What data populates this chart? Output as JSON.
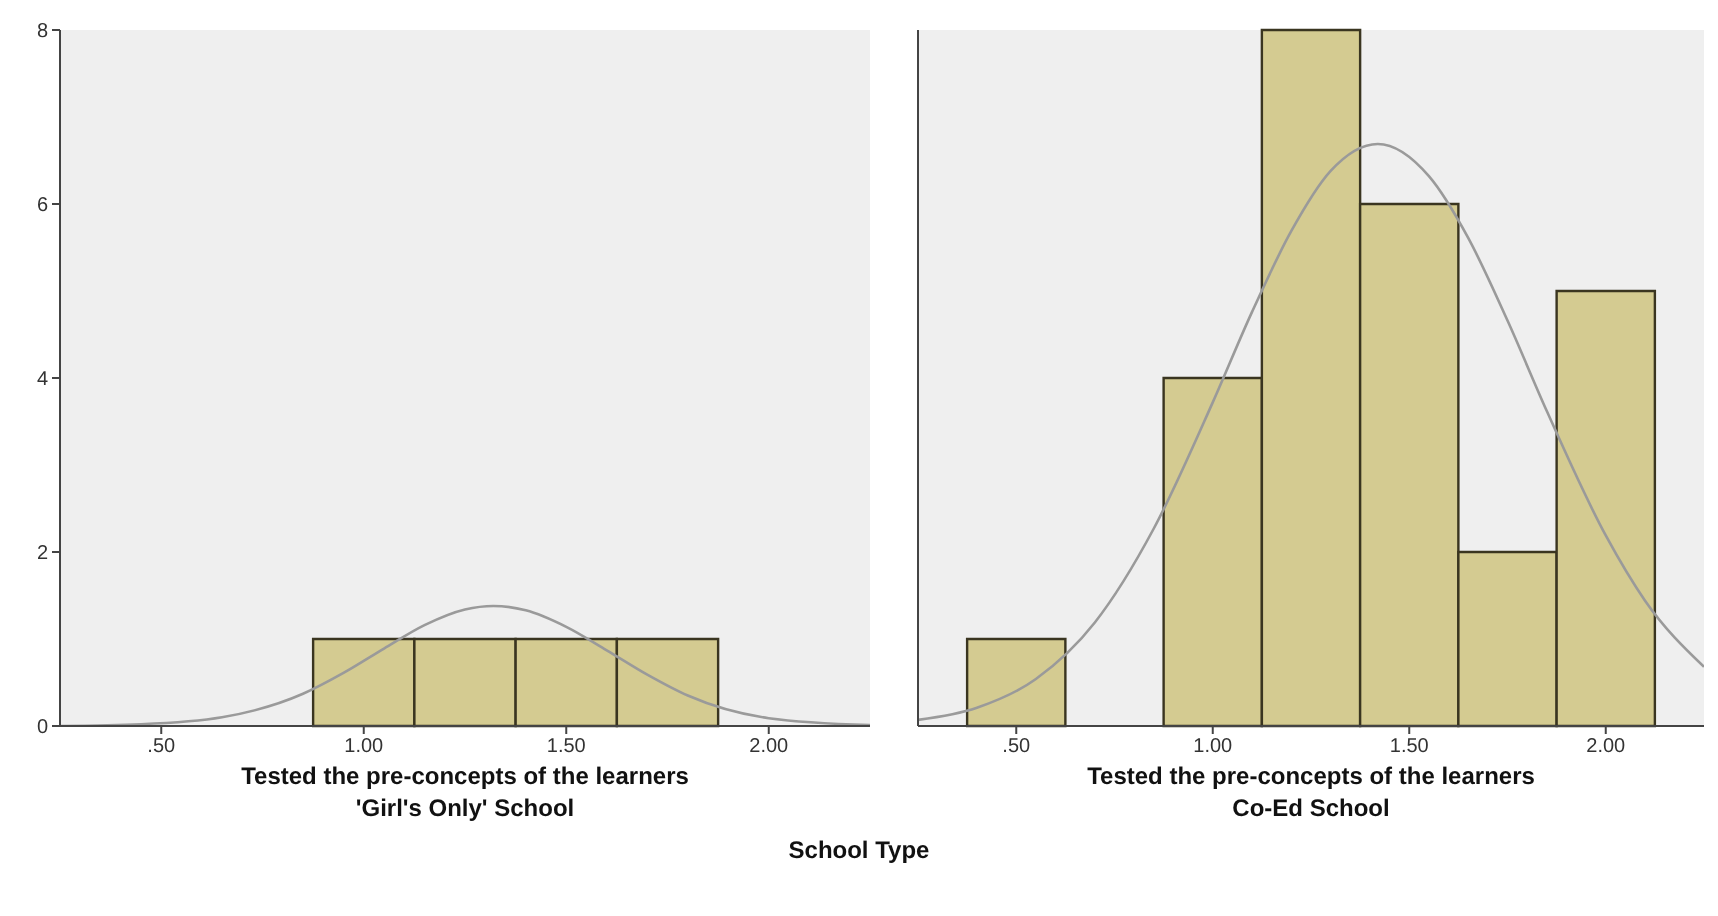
{
  "chart_data": [
    {
      "type": "histogram",
      "xlabel": "Tested the pre-concepts of the learners",
      "annotations": [
        "'Girl's Only' School",
        "School Type"
      ],
      "bins": [
        0.375,
        0.625,
        0.875,
        1.125,
        1.375,
        1.625,
        1.875,
        2.125
      ],
      "values": [
        0,
        0,
        1,
        1,
        1,
        1,
        0
      ],
      "color": "#d4cb91",
      "xlim": [
        0.25,
        2.25
      ],
      "xticks": [
        {
          "value": 0.5,
          "label": ".50"
        },
        {
          "value": 1,
          "label": "1.00"
        },
        {
          "value": 1.5,
          "label": "1.50"
        },
        {
          "value": 2,
          "label": "2.00"
        }
      ],
      "ylim": [
        0,
        8
      ],
      "yticks": [
        0,
        2,
        4,
        6,
        8
      ],
      "grid": false,
      "series": [
        {
          "type": "line",
          "color": "#9a9a9a",
          "x": [
            0.25,
            0.45,
            0.65,
            0.85,
            0.95,
            1.05,
            1.15,
            1.25,
            1.32,
            1.4,
            1.5,
            1.6,
            1.7,
            1.8,
            2.0,
            2.25
          ],
          "values": [
            0.0,
            0.02,
            0.1,
            0.37,
            0.61,
            0.89,
            1.16,
            1.34,
            1.38,
            1.33,
            1.14,
            0.87,
            0.59,
            0.35,
            0.09,
            0.01
          ]
        }
      ]
    },
    {
      "type": "histogram",
      "xlabel": "Tested the pre-concepts of the learners",
      "annotations": [
        "Co-Ed School"
      ],
      "bins": [
        0.375,
        0.625,
        0.875,
        1.125,
        1.375,
        1.625,
        1.875,
        2.125
      ],
      "values": [
        1,
        0,
        4,
        8,
        6,
        2,
        5
      ],
      "color": "#d4cb91",
      "xlim": [
        0.25,
        2.25
      ],
      "xticks": [
        {
          "value": 0.5,
          "label": ".50"
        },
        {
          "value": 1,
          "label": "1.00"
        },
        {
          "value": 1.5,
          "label": "1.50"
        },
        {
          "value": 2,
          "label": "2.00"
        }
      ],
      "ylim": [
        0,
        8
      ],
      "yticks": [
        0,
        2,
        4,
        6,
        8
      ],
      "tick_labels": "x",
      "grid": false,
      "series": [
        {
          "type": "line",
          "color": "#9a9a9a",
          "x": [
            0.25,
            0.4,
            0.55,
            0.7,
            0.85,
            1.0,
            1.1,
            1.2,
            1.3,
            1.42,
            1.55,
            1.65,
            1.75,
            1.85,
            2.0,
            2.1,
            2.25
          ],
          "values": [
            0.07,
            0.21,
            0.54,
            1.19,
            2.27,
            3.72,
            4.76,
            5.69,
            6.38,
            6.69,
            6.32,
            5.61,
            4.66,
            3.62,
            2.19,
            1.44,
            0.68
          ]
        }
      ]
    }
  ]
}
